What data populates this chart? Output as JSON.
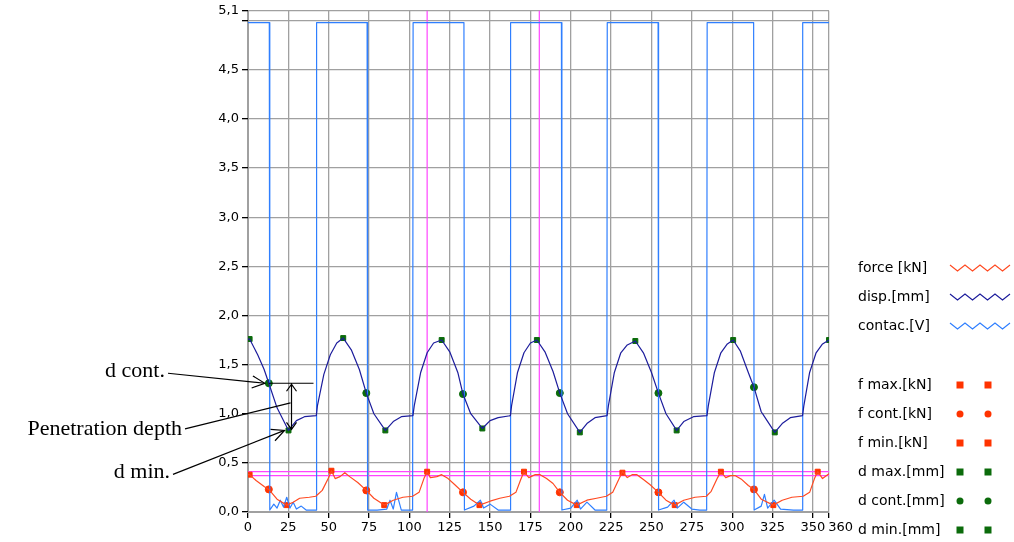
{
  "chart_data": {
    "type": "line",
    "xlim": [
      0,
      360
    ],
    "ylim": [
      0,
      5.1
    ],
    "xticks": [
      0,
      25,
      50,
      75,
      100,
      125,
      150,
      175,
      200,
      225,
      250,
      275,
      300,
      325,
      350,
      360
    ],
    "yticks": [
      {
        "value": 0,
        "label": "0,0"
      },
      {
        "value": 0.5,
        "label": "0,5"
      },
      {
        "value": 1,
        "label": "1,0"
      },
      {
        "value": 1.5,
        "label": "1,5"
      },
      {
        "value": 2,
        "label": "2,0"
      },
      {
        "value": 2.5,
        "label": "2,5"
      },
      {
        "value": 3,
        "label": "3,0"
      },
      {
        "value": 3.5,
        "label": "3,5"
      },
      {
        "value": 4,
        "label": "4,0"
      },
      {
        "value": 4.5,
        "label": "4,5"
      },
      {
        "value": 5,
        "label": null
      },
      {
        "value": 5.1,
        "label": "5,1"
      }
    ],
    "grid": true,
    "legend": "right",
    "series": [
      {
        "name": "force [kN]",
        "marker": "none",
        "color": "#ff4a22",
        "x": [
          0,
          1,
          5,
          10,
          12.9,
          18,
          24,
          28,
          32,
          38,
          42,
          46,
          50,
          51.7,
          54,
          57,
          60,
          63,
          68,
          73.3,
          78,
          84.4,
          90,
          96,
          102,
          106,
          109,
          111,
          113,
          117,
          120,
          124,
          128,
          133.2,
          138,
          143.4,
          150,
          156,
          162,
          166,
          169,
          171,
          174,
          178,
          181,
          185,
          189,
          193.2,
          198,
          203.7,
          210,
          216,
          222,
          226,
          230,
          232,
          235,
          238,
          241,
          245,
          249,
          254.3,
          259,
          264.4,
          270,
          277,
          284,
          287,
          291,
          293,
          296,
          299,
          302,
          306,
          310,
          313.5,
          318,
          325.5,
          331,
          337,
          344,
          348,
          351,
          353,
          356,
          360
        ],
        "values": [
          0.38,
          0.38,
          0.32,
          0.26,
          0.23,
          0.13,
          0.07,
          0.1,
          0.14,
          0.15,
          0.16,
          0.22,
          0.35,
          0.42,
          0.34,
          0.36,
          0.4,
          0.36,
          0.3,
          0.22,
          0.14,
          0.07,
          0.12,
          0.15,
          0.16,
          0.2,
          0.34,
          0.41,
          0.35,
          0.36,
          0.38,
          0.34,
          0.28,
          0.2,
          0.13,
          0.07,
          0.11,
          0.14,
          0.16,
          0.2,
          0.33,
          0.41,
          0.35,
          0.38,
          0.38,
          0.34,
          0.29,
          0.2,
          0.12,
          0.07,
          0.12,
          0.14,
          0.16,
          0.2,
          0.34,
          0.41,
          0.35,
          0.38,
          0.38,
          0.33,
          0.28,
          0.2,
          0.12,
          0.07,
          0.12,
          0.15,
          0.16,
          0.21,
          0.35,
          0.41,
          0.35,
          0.37,
          0.37,
          0.33,
          0.27,
          0.23,
          0.13,
          0.07,
          0.12,
          0.15,
          0.16,
          0.2,
          0.34,
          0.41,
          0.34,
          0.39
        ]
      },
      {
        "name": "disp.[mm]",
        "marker": "none",
        "color": "#1c1c9c",
        "x": [
          0,
          1,
          6,
          10,
          12.9,
          18,
          25.1,
          30,
          35,
          42.3,
          43,
          47,
          51,
          55,
          59,
          64,
          69,
          73.3,
          78,
          85.1,
          90,
          95,
          102.2,
          103,
          107,
          111,
          115,
          120,
          125,
          130,
          133.2,
          138,
          145.2,
          150,
          155,
          162.6,
          163.3,
          167,
          171,
          175,
          179,
          184,
          189,
          193.2,
          198,
          205.6,
          210,
          215,
          222.5,
          223.3,
          227,
          231,
          235,
          240,
          245,
          250,
          254.3,
          259,
          265.6,
          270,
          276,
          284.4,
          285.2,
          289,
          293,
          297,
          300.6,
          305,
          310,
          313.5,
          318,
          326.4,
          331,
          336,
          343.6,
          344.4,
          348,
          352,
          356,
          360
        ],
        "values": [
          1.76,
          1.76,
          1.6,
          1.45,
          1.31,
          1.06,
          0.83,
          0.93,
          0.97,
          0.98,
          1.08,
          1.4,
          1.6,
          1.72,
          1.77,
          1.65,
          1.45,
          1.21,
          1.0,
          0.83,
          0.92,
          0.97,
          0.98,
          1.08,
          1.42,
          1.62,
          1.72,
          1.75,
          1.63,
          1.42,
          1.2,
          1.0,
          0.85,
          0.93,
          0.96,
          0.98,
          1.08,
          1.42,
          1.62,
          1.72,
          1.75,
          1.63,
          1.43,
          1.21,
          1.0,
          0.81,
          0.9,
          0.96,
          0.98,
          1.08,
          1.42,
          1.62,
          1.7,
          1.74,
          1.62,
          1.42,
          1.21,
          1.0,
          0.83,
          0.92,
          0.97,
          0.98,
          1.08,
          1.42,
          1.62,
          1.71,
          1.75,
          1.64,
          1.42,
          1.27,
          1.02,
          0.81,
          0.9,
          0.96,
          0.98,
          1.08,
          1.42,
          1.62,
          1.71,
          1.75
        ]
      },
      {
        "name": "contac.[V]",
        "marker": "none",
        "color": "#2f7fff",
        "x": [
          0,
          13.2,
          13.5,
          16,
          18,
          20,
          22,
          24,
          26,
          28,
          30,
          33,
          36,
          40,
          42.2,
          42.5,
          73.8,
          74.1,
          80,
          86,
          88,
          90,
          92,
          95,
          100,
          102,
          102.3,
          133.8,
          134.1,
          140,
          144,
          146,
          150,
          155,
          160,
          162.4,
          162.7,
          194.2,
          194.5,
          200,
          204,
          206,
          210,
          215,
          222.3,
          222.6,
          254.1,
          254.4,
          260,
          264,
          266,
          270,
          275,
          280,
          284.2,
          284.5,
          313.3,
          313.6,
          318,
          320,
          322,
          326,
          330,
          338,
          343.4,
          343.7,
          360
        ],
        "values": [
          4.98,
          4.98,
          0.02,
          0.08,
          0.04,
          0.12,
          0.05,
          0.15,
          0.04,
          0.1,
          0.03,
          0.06,
          0.02,
          0.02,
          0.02,
          4.98,
          4.98,
          0.02,
          0.02,
          0.03,
          0.12,
          0.03,
          0.2,
          0.02,
          0.02,
          0.02,
          4.98,
          4.98,
          0.02,
          0.06,
          0.12,
          0.04,
          0.08,
          0.02,
          0.02,
          0.02,
          4.98,
          4.98,
          0.02,
          0.04,
          0.12,
          0.03,
          0.1,
          0.02,
          0.02,
          4.98,
          4.98,
          0.02,
          0.05,
          0.12,
          0.04,
          0.1,
          0.03,
          0.02,
          0.02,
          4.98,
          4.98,
          0.02,
          0.06,
          0.18,
          0.04,
          0.12,
          0.03,
          0.02,
          0.02,
          4.98,
          4.98
        ]
      },
      {
        "name": "f max.[kN]",
        "type": "scatter",
        "marker": "square",
        "color": "#ff3300",
        "x": [
          1,
          51.7,
          111,
          171,
          232,
          293,
          353
        ],
        "values": [
          0.38,
          0.42,
          0.41,
          0.41,
          0.4,
          0.41,
          0.41
        ]
      },
      {
        "name": "f cont.[kN]",
        "type": "scatter",
        "marker": "circle",
        "color": "#ff3300",
        "x": [
          12.9,
          73.3,
          133.2,
          193.2,
          254.3,
          313.5
        ],
        "values": [
          0.23,
          0.22,
          0.2,
          0.2,
          0.2,
          0.23
        ]
      },
      {
        "name": "f min.[kN]",
        "type": "scatter",
        "marker": "square",
        "color": "#ff3300",
        "x": [
          24,
          84.4,
          143.4,
          203.7,
          264.4,
          325.5
        ],
        "values": [
          0.07,
          0.07,
          0.07,
          0.07,
          0.07,
          0.07
        ]
      },
      {
        "name": "d max.[mm]",
        "type": "scatter",
        "marker": "square",
        "color": "#0b6b0b",
        "x": [
          1,
          59,
          120,
          179,
          240,
          300.6,
          360
        ],
        "values": [
          1.76,
          1.77,
          1.75,
          1.75,
          1.74,
          1.75,
          1.75
        ]
      },
      {
        "name": "d cont.[mm]",
        "type": "scatter",
        "marker": "circle",
        "color": "#0b6b0b",
        "x": [
          12.9,
          73.3,
          133.2,
          193.2,
          254.3,
          313.5
        ],
        "values": [
          1.31,
          1.21,
          1.2,
          1.21,
          1.21,
          1.27
        ]
      },
      {
        "name": "d min.[mm]",
        "type": "scatter",
        "marker": "square",
        "color": "#0b6b0b",
        "x": [
          25.1,
          85.1,
          145.2,
          205.6,
          265.6,
          326.4
        ],
        "values": [
          0.83,
          0.83,
          0.85,
          0.81,
          0.83,
          0.81
        ]
      }
    ],
    "ref_lines": [
      {
        "axis": "y",
        "value": 0.41,
        "color": "#ff44ff"
      },
      {
        "axis": "y",
        "value": 0.37,
        "color": "#ff44ff"
      },
      {
        "axis": "x",
        "value": 111,
        "color": "#ff44ff"
      },
      {
        "axis": "x",
        "value": 180.5,
        "color": "#ff44ff"
      }
    ],
    "annotations": [
      {
        "text": "d cont.",
        "x": 12.9,
        "y": 1.31
      },
      "Penetration depth",
      {
        "text": "d min.",
        "x": 25.1,
        "y": 0.83
      }
    ]
  }
}
